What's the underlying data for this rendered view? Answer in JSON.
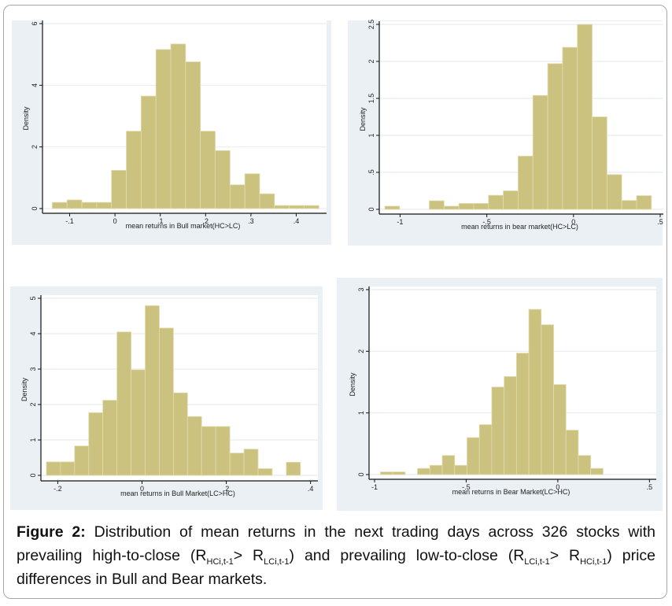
{
  "figure": {
    "caption_label": "Figure 2:",
    "caption_parts": {
      "p1": " Distribution of mean returns in the next trading days across 326 stocks with prevailing high-to-close (R",
      "s1": "HCi,t-1",
      "p2": "> R",
      "s2": "LCi,t-1",
      "p3": ") and prevailing low-to-close (R",
      "s3": "LCi,t-1",
      "p4": "> R",
      "s4": "HCi,t-1",
      "p5": ") price differences in Bull and Bear markets."
    }
  },
  "colors": {
    "bar_fill": "#cbc27f",
    "bar_edge": "#e2dcae",
    "panel_bg": "#eaf0f3",
    "plot_bg": "#ffffff",
    "grid": "#e8eef1",
    "axis": "#111111"
  },
  "chart_data": [
    {
      "type": "bar",
      "subtype": "histogram",
      "title": "",
      "xlabel": "mean returns in Bull market(HC>LC)",
      "ylabel": "Density",
      "xlim": [
        -0.16,
        0.46
      ],
      "ylim": [
        0,
        6
      ],
      "xticks": [
        -0.1,
        0,
        0.1,
        0.2,
        0.3,
        0.4
      ],
      "xtick_labels": [
        "-.1",
        "0",
        ".1",
        ".2",
        ".3",
        ".4"
      ],
      "yticks": [
        0,
        2,
        4,
        6
      ],
      "ytick_labels": [
        "0",
        "2",
        "4",
        "6"
      ],
      "grid": true,
      "bin_start": -0.1385,
      "bin_width": 0.0327,
      "values": [
        0.2,
        0.28,
        0.2,
        0.2,
        1.24,
        2.51,
        3.65,
        5.16,
        5.34,
        4.76,
        2.51,
        1.88,
        0.77,
        1.13,
        0.48,
        0.1,
        0.1,
        0.1
      ]
    },
    {
      "type": "bar",
      "subtype": "histogram",
      "title": "",
      "xlabel": "mean returns in bear market(HC>LC)",
      "ylabel": "Density",
      "xlim": [
        -1.12,
        0.5
      ],
      "ylim": [
        0,
        2.5
      ],
      "xticks": [
        -1,
        -0.5,
        0,
        0.5
      ],
      "xtick_labels": [
        "-1",
        "-.5",
        "0",
        ".5"
      ],
      "yticks": [
        0,
        0.5,
        1,
        1.5,
        2,
        2.5
      ],
      "ytick_labels": [
        "0",
        ".5",
        "1",
        "1.5",
        "2",
        "2.5"
      ],
      "grid": true,
      "bin_start": -1.088,
      "bin_width": 0.0854,
      "values": [
        0.043,
        0,
        0,
        0.116,
        0.043,
        0.08,
        0.08,
        0.19,
        0.25,
        0.72,
        1.54,
        1.97,
        2.19,
        2.5,
        1.25,
        0.47,
        0.12,
        0.185
      ]
    },
    {
      "type": "bar",
      "subtype": "histogram",
      "title": "",
      "xlabel": "mean returns in Bull Market(LC>HC)",
      "ylabel": "Density",
      "xlim": [
        -0.24,
        0.41
      ],
      "ylim": [
        0,
        5
      ],
      "xticks": [
        -0.2,
        0,
        0.2,
        0.4
      ],
      "xtick_labels": [
        "-.2",
        "0",
        ".2",
        ".4"
      ],
      "yticks": [
        0,
        1,
        2,
        3,
        4,
        5
      ],
      "ytick_labels": [
        "0",
        "1",
        "2",
        "3",
        "4",
        "5"
      ],
      "grid": true,
      "bin_start": -0.227,
      "bin_width": 0.0335,
      "values": [
        0.38,
        0.38,
        0.83,
        1.77,
        2.12,
        4.05,
        2.98,
        4.79,
        4.16,
        2.33,
        1.66,
        1.38,
        1.38,
        0.63,
        0.74,
        0.19,
        0,
        0.37
      ]
    },
    {
      "type": "bar",
      "subtype": "histogram",
      "title": "",
      "xlabel": "mean returns in Bear Market(LC>HC)",
      "ylabel": "Density",
      "xlim": [
        -1.03,
        0.52
      ],
      "ylim": [
        0,
        3
      ],
      "xticks": [
        -1,
        -0.5,
        0,
        0.5
      ],
      "xtick_labels": [
        "-1",
        "-.5",
        "0",
        ".5"
      ],
      "yticks": [
        0,
        1,
        2,
        3
      ],
      "ytick_labels": [
        "0",
        "1",
        "2",
        "3"
      ],
      "grid": true,
      "bin_start": -0.968,
      "bin_width": 0.0675,
      "values": [
        0.043,
        0.043,
        0,
        0.1,
        0.15,
        0.31,
        0.15,
        0.6,
        0.81,
        1.42,
        1.59,
        1.97,
        2.68,
        2.43,
        1.46,
        0.72,
        0.31,
        0.1
      ]
    }
  ]
}
